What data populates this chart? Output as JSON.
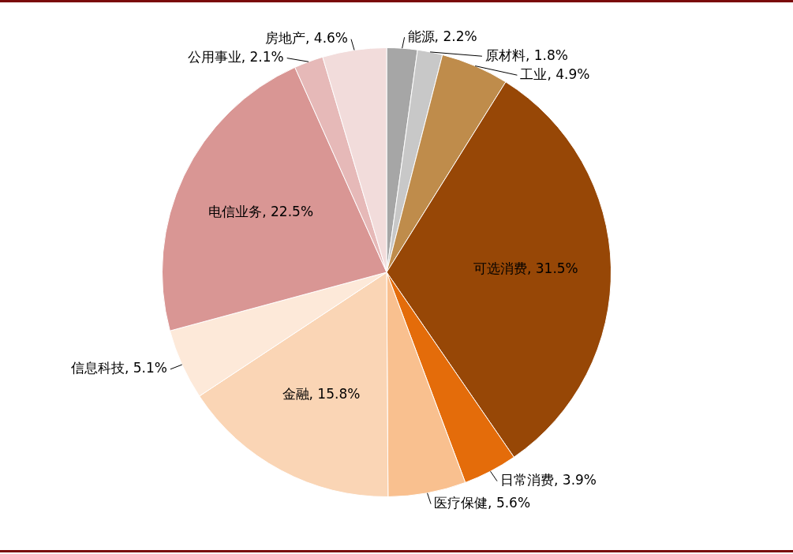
{
  "chart_data": {
    "type": "pie",
    "categories": [
      "能源",
      "原材料",
      "工业",
      "可选消费",
      "日常消费",
      "医疗保健",
      "金融",
      "信息科技",
      "电信业务",
      "公用事业",
      "房地产"
    ],
    "values": [
      2.2,
      1.8,
      4.9,
      31.5,
      3.9,
      5.6,
      15.8,
      5.1,
      22.5,
      2.1,
      4.6
    ],
    "colors": [
      "#a6a6a6",
      "#c8c8c8",
      "#bf8c4b",
      "#974706",
      "#e46c0a",
      "#f9c08f",
      "#fad5b5",
      "#fde9d9",
      "#d99694",
      "#e6b9b8",
      "#f2dcdb"
    ],
    "value_labels": [
      ", 2.2%",
      ", 1.8%",
      ", 4.9%",
      ", 31.5%",
      ", 3.9%",
      ", 5.6%",
      ", 15.8%",
      ", 5.1%",
      ", 22.5%",
      ", 2.1%",
      ", 4.6%"
    ],
    "legend": false
  }
}
